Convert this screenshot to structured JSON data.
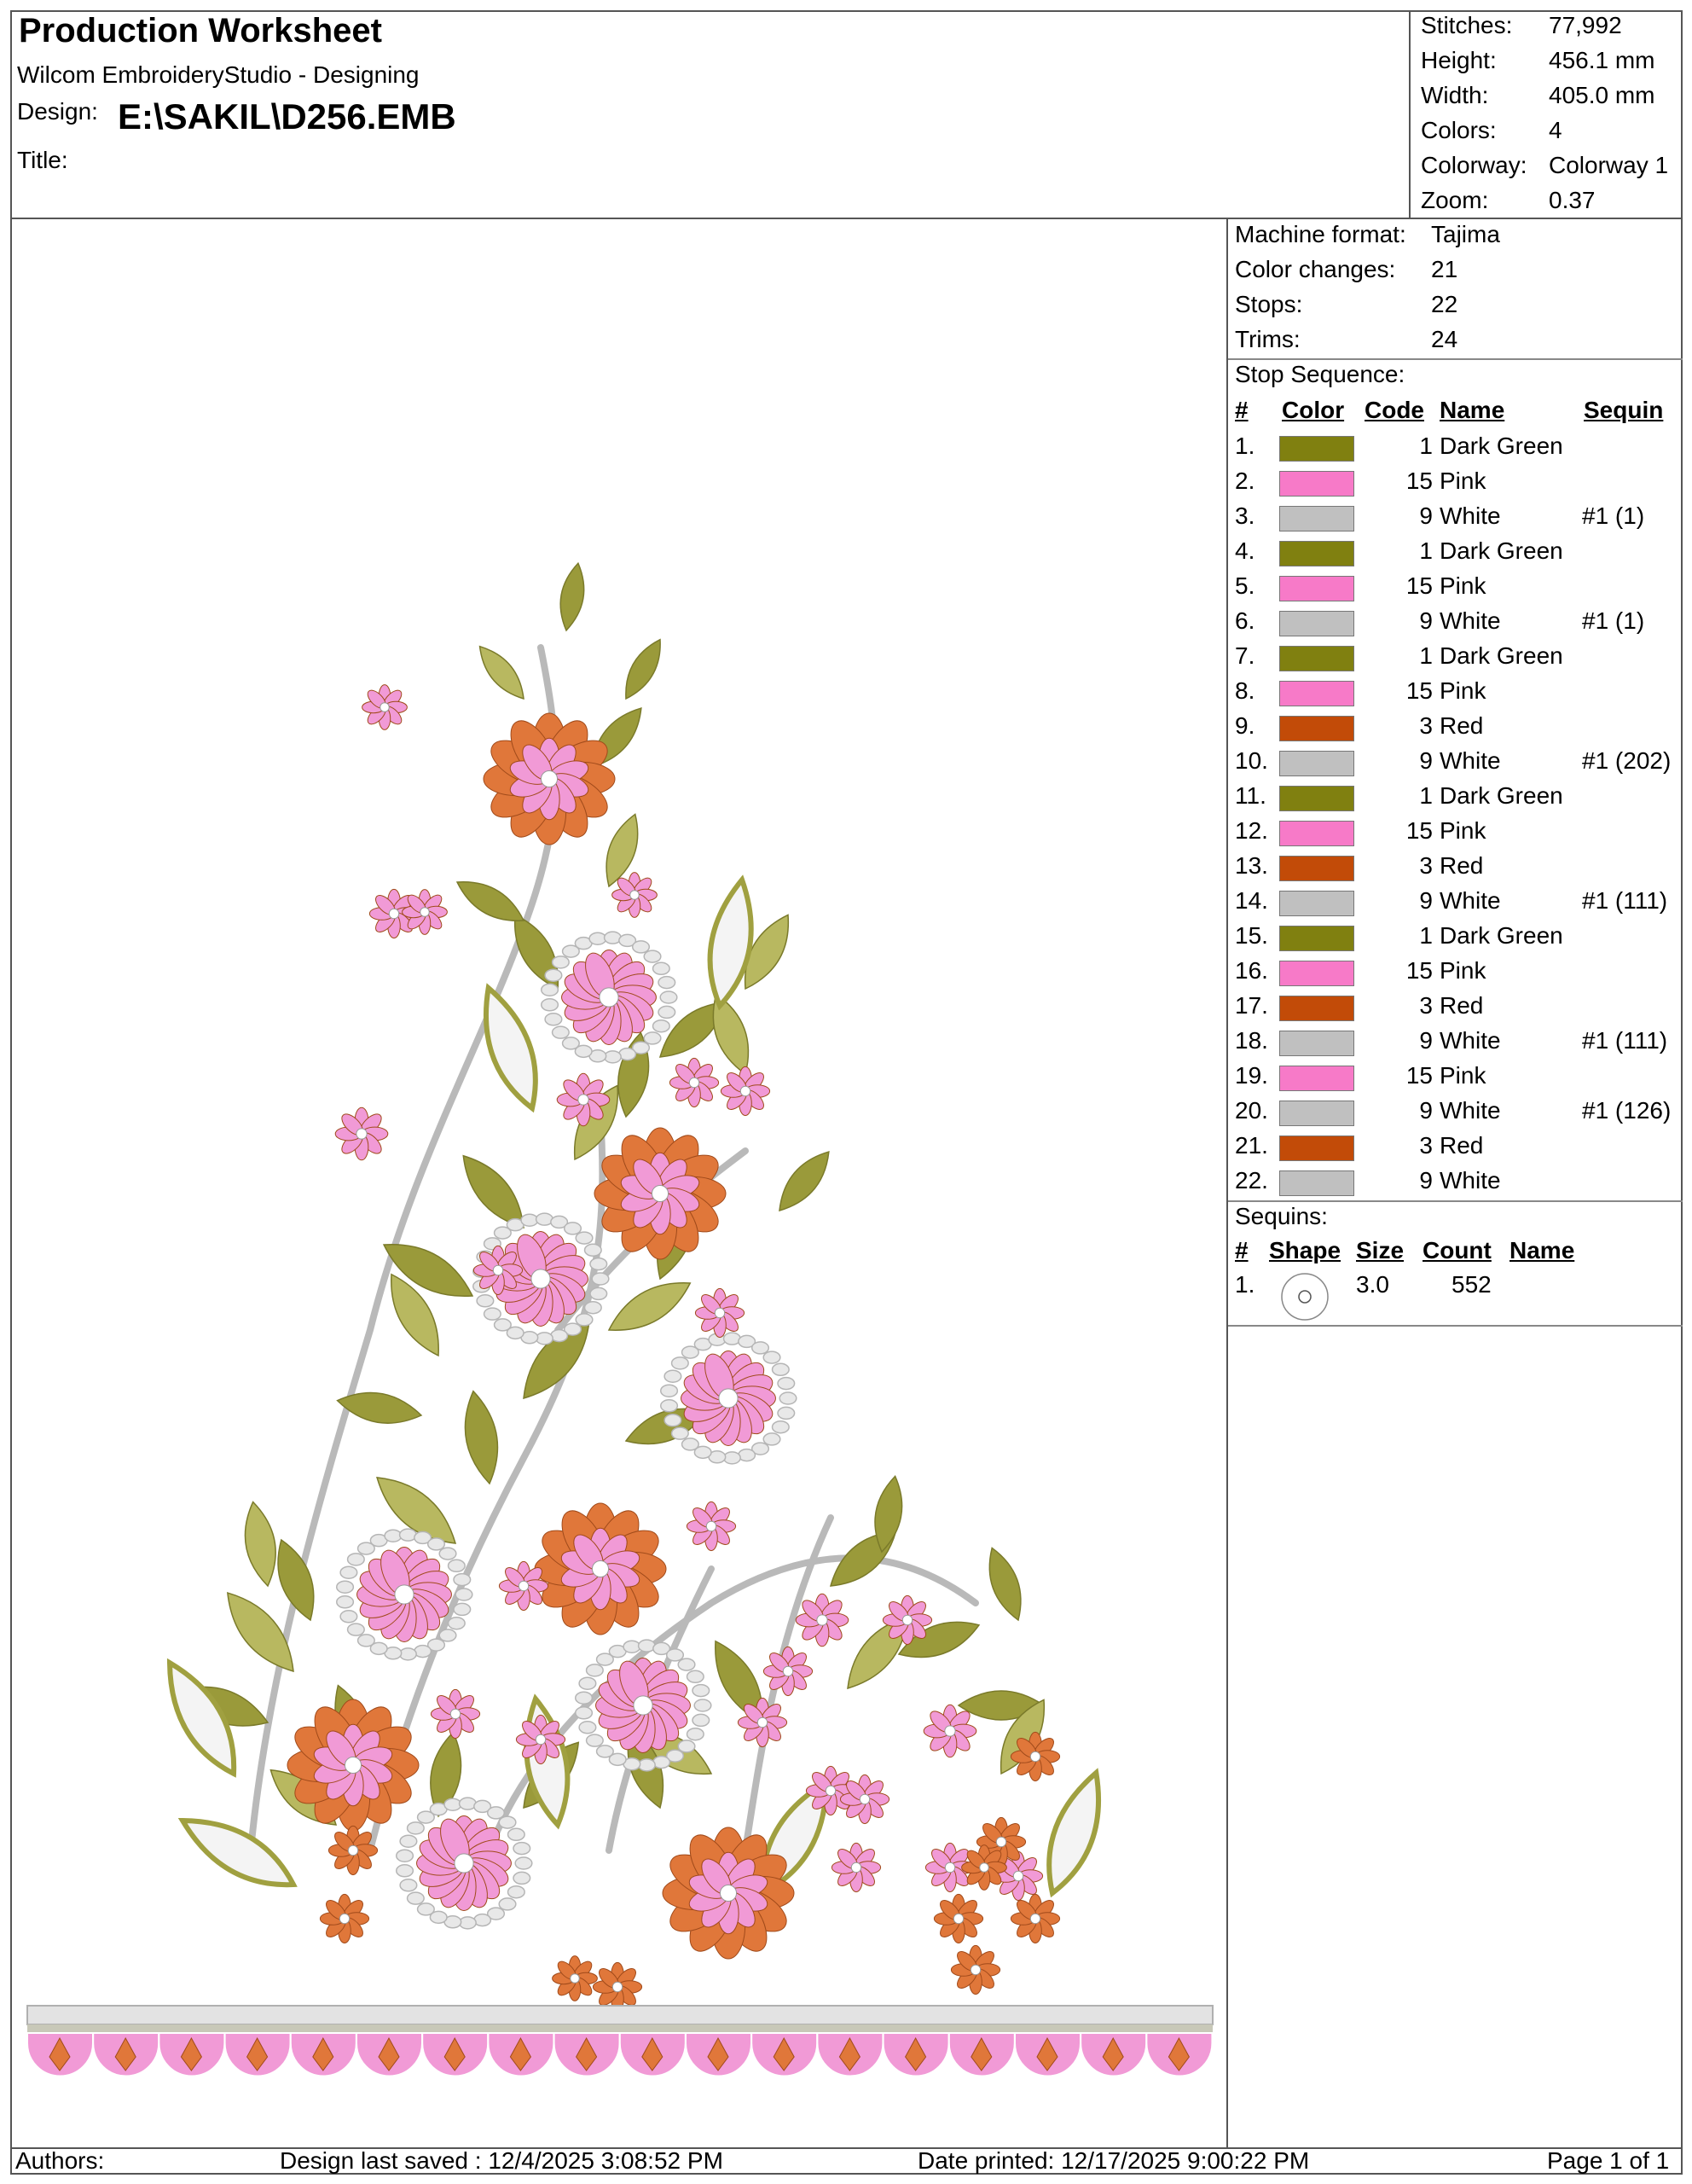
{
  "header": {
    "title": "Production Worksheet",
    "software": "Wilcom EmbroideryStudio - Designing",
    "design_label": "Design:",
    "design_value": "E:\\SAKIL\\D256.EMB",
    "title_label": "Title:"
  },
  "stats": [
    {
      "label": "Stitches:",
      "value": "77,992"
    },
    {
      "label": "Height:",
      "value": "456.1 mm"
    },
    {
      "label": "Width:",
      "value": "405.0 mm"
    },
    {
      "label": "Colors:",
      "value": "4"
    },
    {
      "label": "Colorway:",
      "value": "Colorway 1"
    },
    {
      "label": "Zoom:",
      "value": "0.37"
    }
  ],
  "machine": [
    {
      "label": "Machine format:",
      "value": "Tajima"
    },
    {
      "label": "Color changes:",
      "value": "21"
    },
    {
      "label": "Stops:",
      "value": "22"
    },
    {
      "label": "Trims:",
      "value": "24"
    }
  ],
  "stop_sequence": {
    "title": "Stop Sequence:",
    "headers": {
      "num": "#",
      "color": "Color",
      "code": "Code",
      "name": "Name",
      "sequin": "Sequin"
    },
    "rows": [
      {
        "num": "1.",
        "color": "#808010",
        "code": "1",
        "name": "Dark Green",
        "sequin": ""
      },
      {
        "num": "2.",
        "color": "#f77ac8",
        "code": "15",
        "name": "Pink",
        "sequin": ""
      },
      {
        "num": "3.",
        "color": "#c0c0c0",
        "code": "9",
        "name": "White",
        "sequin": "#1 (1)"
      },
      {
        "num": "4.",
        "color": "#808010",
        "code": "1",
        "name": "Dark Green",
        "sequin": ""
      },
      {
        "num": "5.",
        "color": "#f77ac8",
        "code": "15",
        "name": "Pink",
        "sequin": ""
      },
      {
        "num": "6.",
        "color": "#c0c0c0",
        "code": "9",
        "name": "White",
        "sequin": "#1 (1)"
      },
      {
        "num": "7.",
        "color": "#808010",
        "code": "1",
        "name": "Dark Green",
        "sequin": ""
      },
      {
        "num": "8.",
        "color": "#f77ac8",
        "code": "15",
        "name": "Pink",
        "sequin": ""
      },
      {
        "num": "9.",
        "color": "#c24b08",
        "code": "3",
        "name": "Red",
        "sequin": ""
      },
      {
        "num": "10.",
        "color": "#c0c0c0",
        "code": "9",
        "name": "White",
        "sequin": "#1 (202)"
      },
      {
        "num": "11.",
        "color": "#808010",
        "code": "1",
        "name": "Dark Green",
        "sequin": ""
      },
      {
        "num": "12.",
        "color": "#f77ac8",
        "code": "15",
        "name": "Pink",
        "sequin": ""
      },
      {
        "num": "13.",
        "color": "#c24b08",
        "code": "3",
        "name": "Red",
        "sequin": ""
      },
      {
        "num": "14.",
        "color": "#c0c0c0",
        "code": "9",
        "name": "White",
        "sequin": "#1 (111)"
      },
      {
        "num": "15.",
        "color": "#808010",
        "code": "1",
        "name": "Dark Green",
        "sequin": ""
      },
      {
        "num": "16.",
        "color": "#f77ac8",
        "code": "15",
        "name": "Pink",
        "sequin": ""
      },
      {
        "num": "17.",
        "color": "#c24b08",
        "code": "3",
        "name": "Red",
        "sequin": ""
      },
      {
        "num": "18.",
        "color": "#c0c0c0",
        "code": "9",
        "name": "White",
        "sequin": "#1 (111)"
      },
      {
        "num": "19.",
        "color": "#f77ac8",
        "code": "15",
        "name": "Pink",
        "sequin": ""
      },
      {
        "num": "20.",
        "color": "#c0c0c0",
        "code": "9",
        "name": "White",
        "sequin": "#1 (126)"
      },
      {
        "num": "21.",
        "color": "#c24b08",
        "code": "3",
        "name": "Red",
        "sequin": ""
      },
      {
        "num": "22.",
        "color": "#c0c0c0",
        "code": "9",
        "name": "White",
        "sequin": ""
      }
    ]
  },
  "sequins": {
    "title": "Sequins:",
    "headers": {
      "num": "#",
      "shape": "Shape",
      "size": "Size",
      "count": "Count",
      "name": "Name"
    },
    "rows": [
      {
        "num": "1.",
        "shape_icon": "circle-sequin-icon",
        "size": "3.0",
        "count": "552",
        "name": ""
      }
    ]
  },
  "footer": {
    "authors": "Authors:",
    "saved": "Design last saved : 12/4/2025 3:08:52 PM",
    "printed": "Date printed: 12/17/2025 9:00:22 PM",
    "page": "Page 1 of 1"
  },
  "design_colors": {
    "green": "#9a9a3a",
    "green_light": "#b8b860",
    "pink": "#f19ad6",
    "orange": "#e0773a",
    "white": "#e8e8e8",
    "white_edge": "#b5b5b5"
  }
}
